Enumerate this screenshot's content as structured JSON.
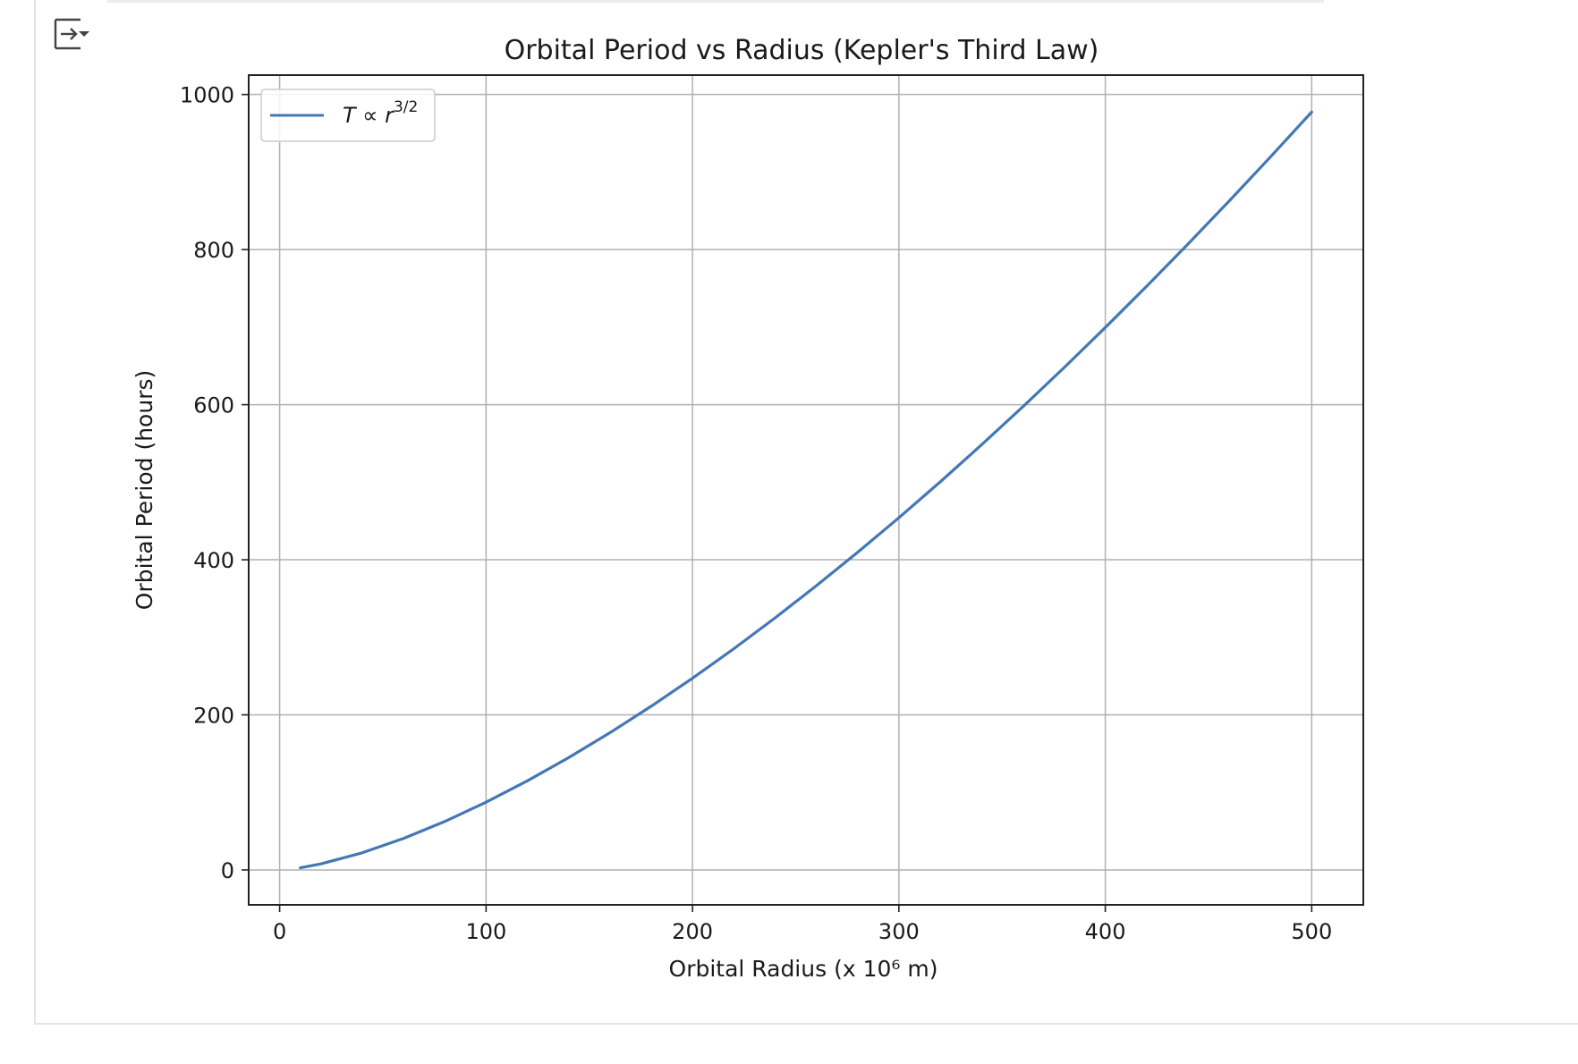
{
  "toolbar": {
    "output_toggle_icon": "output-collapse-icon"
  },
  "chart_data": {
    "type": "line",
    "title": "Orbital Period vs Radius (Kepler's Third Law)",
    "xlabel": "Orbital Radius (x 10⁶ m)",
    "ylabel": "Orbital Period (hours)",
    "xlim": [
      -15,
      525
    ],
    "ylim": [
      -45,
      1025
    ],
    "xticks": [
      0,
      100,
      200,
      300,
      400,
      500
    ],
    "xtick_labels": [
      "0",
      "100",
      "200",
      "300",
      "400",
      "500"
    ],
    "yticks": [
      0,
      200,
      400,
      600,
      800,
      1000
    ],
    "ytick_labels": [
      "0",
      "200",
      "400",
      "600",
      "800",
      "1000"
    ],
    "grid": true,
    "legend": "upper left",
    "color": "#4477b5",
    "series": [
      {
        "name": "T ∝ r^3/2",
        "legend_base": "T ∝ r",
        "legend_sup": "3/2",
        "x": [
          10,
          20,
          40,
          60,
          80,
          100,
          120,
          140,
          160,
          180,
          200,
          220,
          240,
          260,
          280,
          300,
          320,
          340,
          360,
          380,
          400,
          420,
          440,
          460,
          480,
          500
        ],
        "y": [
          2.8,
          7.8,
          22.1,
          40.6,
          62.5,
          87.4,
          114.9,
          144.8,
          176.9,
          211.1,
          247.2,
          285.2,
          325.0,
          366.5,
          409.6,
          454.2,
          500.4,
          548.1,
          597.2,
          647.7,
          699.5,
          752.6,
          807.0,
          862.6,
          919.4,
          977.4
        ]
      }
    ]
  }
}
